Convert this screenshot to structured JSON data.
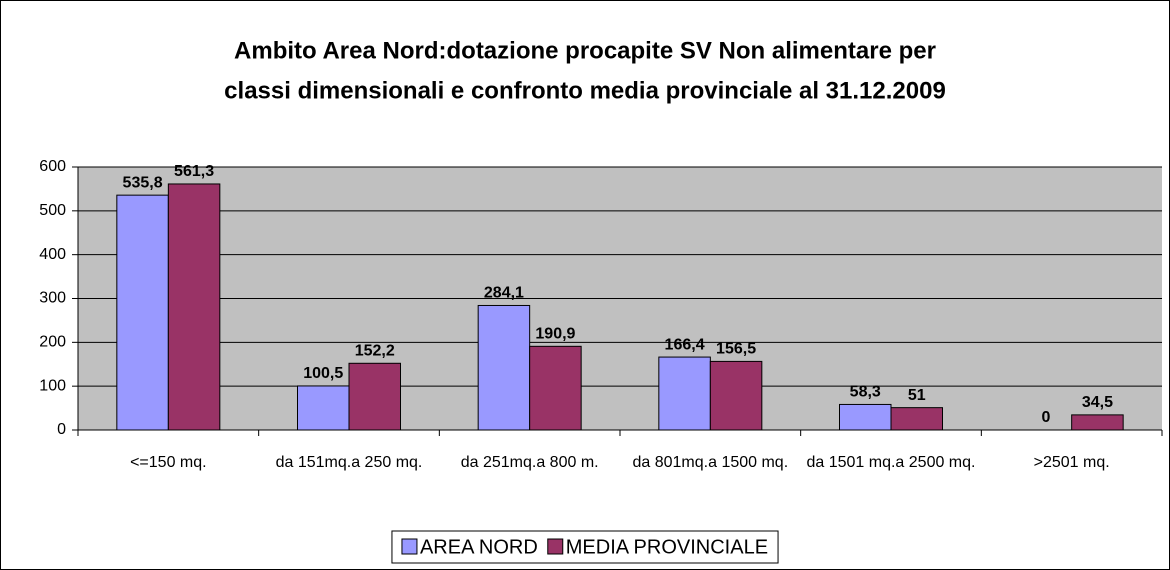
{
  "chart_data": {
    "type": "bar",
    "title": "Ambito Area Nord:dotazione procapite  SV Non alimentare per",
    "subtitle": "classi dimensionali e confronto media provinciale al 31.12.2009",
    "categories": [
      "<=150 mq.",
      "da 151mq.a 250 mq.",
      "da 251mq.a 800 m.",
      "da 801mq.a 1500 mq.",
      "da 1501 mq.a 2500 mq.",
      ">2501 mq."
    ],
    "series": [
      {
        "name": "AREA NORD",
        "color": "#9999ff",
        "values": [
          535.8,
          100.5,
          284.1,
          166.4,
          58.3,
          0
        ],
        "value_labels": [
          "535,8",
          "100,5",
          "284,1",
          "166,4",
          "58,3",
          "0"
        ]
      },
      {
        "name": "MEDIA PROVINCIALE",
        "color": "#993366",
        "values": [
          561.3,
          152.2,
          190.9,
          156.5,
          51,
          34.5
        ],
        "value_labels": [
          "561,3",
          "152,2",
          "190,9",
          "156,5",
          "51",
          "34,5"
        ]
      }
    ],
    "ylim": [
      0,
      600
    ],
    "yticks": [
      0,
      100,
      200,
      300,
      400,
      500,
      600
    ],
    "grid": true,
    "legend": "bottom"
  }
}
